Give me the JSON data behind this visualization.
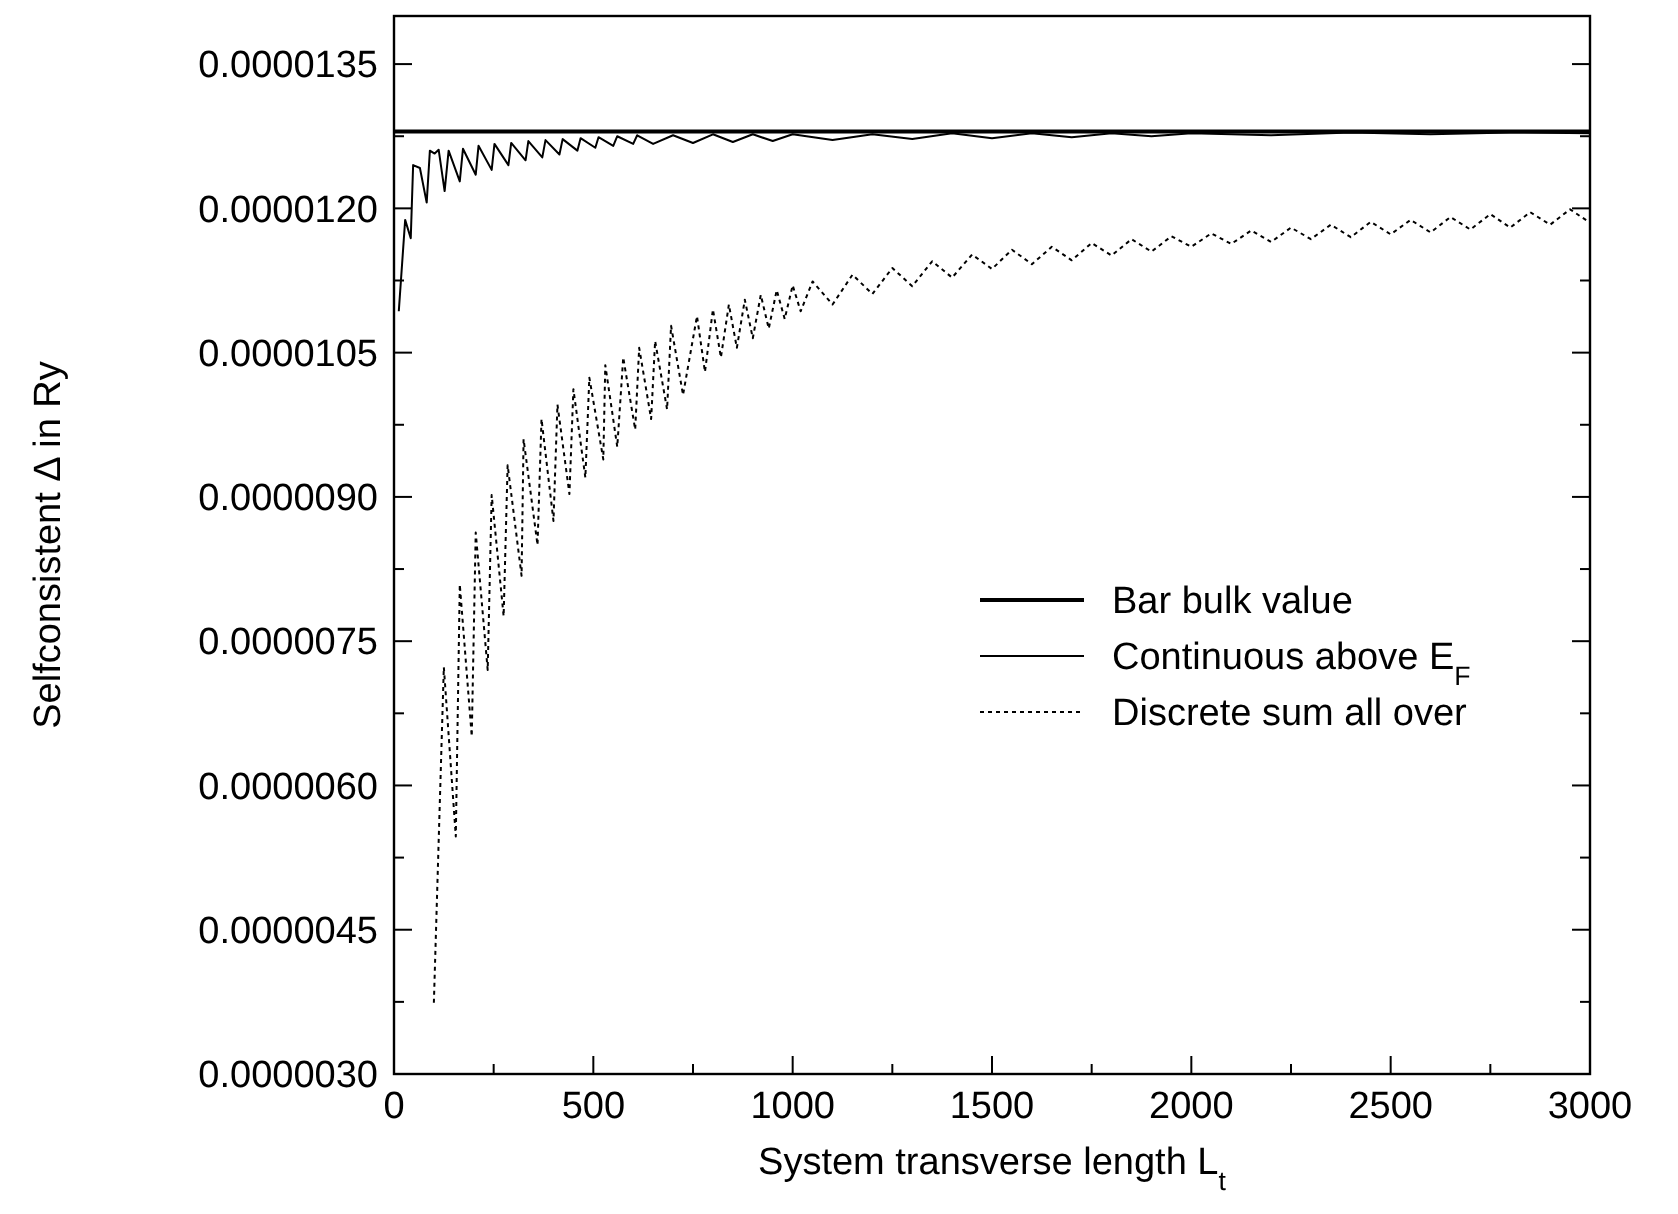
{
  "chart_data": {
    "type": "line",
    "xlabel": "System transverse length L$_{t}$",
    "ylabel": "Selfconsistent Δ in Ry",
    "xlim": [
      0,
      3000
    ],
    "xticks": [
      0,
      {
        "value": 250,
        "label": null
      },
      500,
      {
        "value": 750,
        "label": null
      },
      1000,
      {
        "value": 1250,
        "label": null
      },
      1500,
      {
        "value": 1750,
        "label": null
      },
      2000,
      {
        "value": 2250,
        "label": null
      },
      2500,
      {
        "value": 2750,
        "label": null
      },
      3000
    ],
    "ylim": [
      3e-06,
      1.4e-05
    ],
    "yticks": [
      {
        "value": 3e-06,
        "label": "0.0000030"
      },
      {
        "value": 3.75e-06,
        "label": null
      },
      {
        "value": 4.5e-06,
        "label": "0.0000045"
      },
      {
        "value": 5.25e-06,
        "label": null
      },
      {
        "value": 6e-06,
        "label": "0.0000060"
      },
      {
        "value": 6.75e-06,
        "label": null
      },
      {
        "value": 7.5e-06,
        "label": "0.0000075"
      },
      {
        "value": 8.25e-06,
        "label": null
      },
      {
        "value": 9e-06,
        "label": "0.0000090"
      },
      {
        "value": 9.75e-06,
        "label": null
      },
      {
        "value": 1.05e-05,
        "label": "0.0000105"
      },
      {
        "value": 1.125e-05,
        "label": null
      },
      {
        "value": 1.2e-05,
        "label": "0.0000120"
      },
      {
        "value": 1.275e-05,
        "label": null
      },
      {
        "value": 1.35e-05,
        "label": "0.0000135"
      }
    ],
    "grid": false,
    "legend": "right",
    "marker": "none",
    "series": [
      {
        "name": "Bar bulk value",
        "color": "#000000",
        "line_style": "solid",
        "x": [
          0,
          3000
        ],
        "values": [
          1.28e-05,
          1.28e-05
        ]
      },
      {
        "name": "Continuous above E$_{F}$",
        "color": "#000000",
        "line_style": "solid",
        "x": [
          12,
          28,
          42,
          48,
          65,
          82,
          90,
          102,
          112,
          127,
          137,
          165,
          173,
          205,
          212,
          245,
          252,
          287,
          294,
          330,
          337,
          372,
          380,
          415,
          423,
          460,
          468,
          505,
          513,
          550,
          560,
          600,
          610,
          650,
          700,
          750,
          800,
          850,
          900,
          950,
          1000,
          1100,
          1200,
          1300,
          1400,
          1500,
          1600,
          1700,
          1800,
          1900,
          2000,
          2200,
          2400,
          2600,
          2800,
          3000
        ],
        "values": [
          1.093e-05,
          1.188e-05,
          1.169e-05,
          1.245e-05,
          1.242e-05,
          1.206e-05,
          1.26e-05,
          1.257e-05,
          1.261e-05,
          1.218e-05,
          1.26e-05,
          1.228e-05,
          1.262e-05,
          1.235e-05,
          1.265e-05,
          1.24e-05,
          1.267e-05,
          1.245e-05,
          1.268e-05,
          1.25e-05,
          1.27e-05,
          1.253e-05,
          1.271e-05,
          1.256e-05,
          1.272e-05,
          1.26e-05,
          1.273e-05,
          1.263e-05,
          1.274e-05,
          1.265e-05,
          1.275e-05,
          1.267e-05,
          1.276e-05,
          1.267e-05,
          1.276e-05,
          1.268e-05,
          1.277e-05,
          1.269e-05,
          1.277e-05,
          1.27e-05,
          1.277e-05,
          1.271e-05,
          1.277e-05,
          1.272e-05,
          1.278e-05,
          1.273e-05,
          1.278e-05,
          1.274e-05,
          1.278e-05,
          1.275e-05,
          1.278e-05,
          1.276e-05,
          1.279e-05,
          1.277e-05,
          1.279e-05,
          1.278e-05
        ]
      },
      {
        "name": "Discrete sum all over",
        "color": "#000000",
        "line_style": "dotted",
        "x": [
          100,
          125,
          155,
          165,
          195,
          205,
          235,
          245,
          275,
          285,
          320,
          325,
          360,
          370,
          400,
          410,
          440,
          450,
          480,
          490,
          525,
          530,
          560,
          575,
          605,
          615,
          645,
          655,
          685,
          695,
          725,
          760,
          780,
          800,
          820,
          840,
          860,
          880,
          900,
          920,
          940,
          960,
          980,
          1000,
          1020,
          1050,
          1100,
          1150,
          1200,
          1250,
          1300,
          1350,
          1400,
          1450,
          1500,
          1550,
          1600,
          1650,
          1700,
          1750,
          1800,
          1850,
          1900,
          1950,
          2000,
          2050,
          2100,
          2150,
          2200,
          2250,
          2300,
          2350,
          2400,
          2450,
          2500,
          2550,
          2600,
          2650,
          2700,
          2750,
          2800,
          2850,
          2900,
          2950,
          3000
        ],
        "values": [
          3.74e-06,
          7.23e-06,
          5.47e-06,
          8.09e-06,
          6.51e-06,
          8.63e-06,
          7.2e-06,
          9.02e-06,
          7.76e-06,
          9.33e-06,
          8.18e-06,
          9.6e-06,
          8.5e-06,
          9.81e-06,
          8.75e-06,
          9.96e-06,
          9.03e-06,
          1.012e-05,
          9.2e-06,
          1.024e-05,
          9.39e-06,
          1.037e-05,
          9.52e-06,
          1.045e-05,
          9.7e-06,
          1.055e-05,
          9.81e-06,
          1.062e-05,
          9.91e-06,
          1.078e-05,
          1.006e-05,
          1.088e-05,
          1.03e-05,
          1.095e-05,
          1.045e-05,
          1.1e-05,
          1.055e-05,
          1.105e-05,
          1.065e-05,
          1.11e-05,
          1.075e-05,
          1.115e-05,
          1.085e-05,
          1.12e-05,
          1.093e-05,
          1.124e-05,
          1.1e-05,
          1.131e-05,
          1.111e-05,
          1.138e-05,
          1.119e-05,
          1.145e-05,
          1.128e-05,
          1.152e-05,
          1.137e-05,
          1.157e-05,
          1.142e-05,
          1.16e-05,
          1.146e-05,
          1.164e-05,
          1.151e-05,
          1.168e-05,
          1.155e-05,
          1.171e-05,
          1.16e-05,
          1.174e-05,
          1.163e-05,
          1.177e-05,
          1.165e-05,
          1.18e-05,
          1.168e-05,
          1.183e-05,
          1.17e-05,
          1.186e-05,
          1.173e-05,
          1.188e-05,
          1.175e-05,
          1.191e-05,
          1.178e-05,
          1.194e-05,
          1.18e-05,
          1.196e-05,
          1.183e-05,
          1.199e-05,
          1.185e-05
        ]
      }
    ]
  }
}
